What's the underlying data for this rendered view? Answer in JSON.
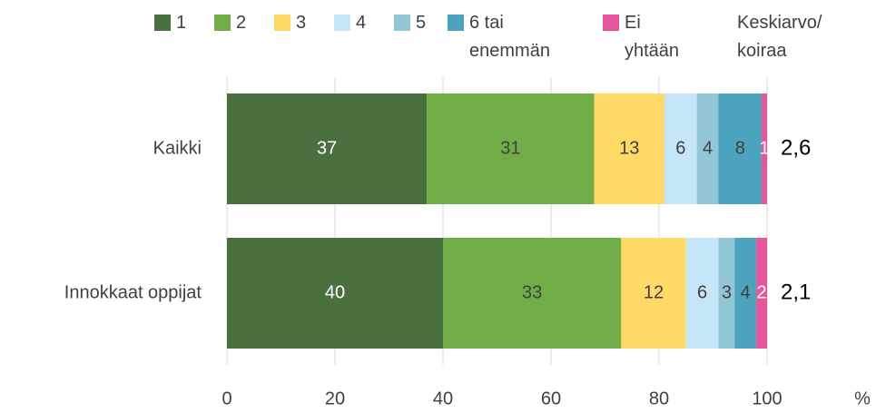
{
  "chart_data": {
    "type": "stacked_bar_horizontal",
    "categories": [
      "Kaikki",
      "Innokkaat oppijat"
    ],
    "series": [
      {
        "name": "1",
        "color": "#4a7040",
        "label_color": "#ffffff",
        "values": [
          37,
          40
        ]
      },
      {
        "name": "2",
        "color": "#70ad47",
        "label_color": "#404040",
        "values": [
          31,
          33
        ]
      },
      {
        "name": "3",
        "color": "#ffd966",
        "label_color": "#404040",
        "values": [
          13,
          12
        ]
      },
      {
        "name": "4",
        "color": "#c5e5f8",
        "label_color": "#404040",
        "values": [
          6,
          6
        ]
      },
      {
        "name": "5",
        "color": "#92c5d5",
        "label_color": "#404040",
        "values": [
          4,
          3
        ]
      },
      {
        "name": "6 tai enemmän",
        "color": "#4ba3bd",
        "label_color": "#404040",
        "values": [
          8,
          4
        ]
      },
      {
        "name": "Ei yhtään",
        "color": "#e8559b",
        "label_color": "#ffffff",
        "values": [
          1,
          2
        ]
      }
    ],
    "average": {
      "name": "Keskiarvo/ koiraa",
      "values": [
        2.6,
        2.1
      ],
      "value_labels": [
        "2,6",
        "2,1"
      ]
    },
    "xlim": [
      0,
      100
    ],
    "xticks": [
      0,
      20,
      40,
      60,
      80,
      100
    ],
    "x_label": "%",
    "grid": true
  }
}
